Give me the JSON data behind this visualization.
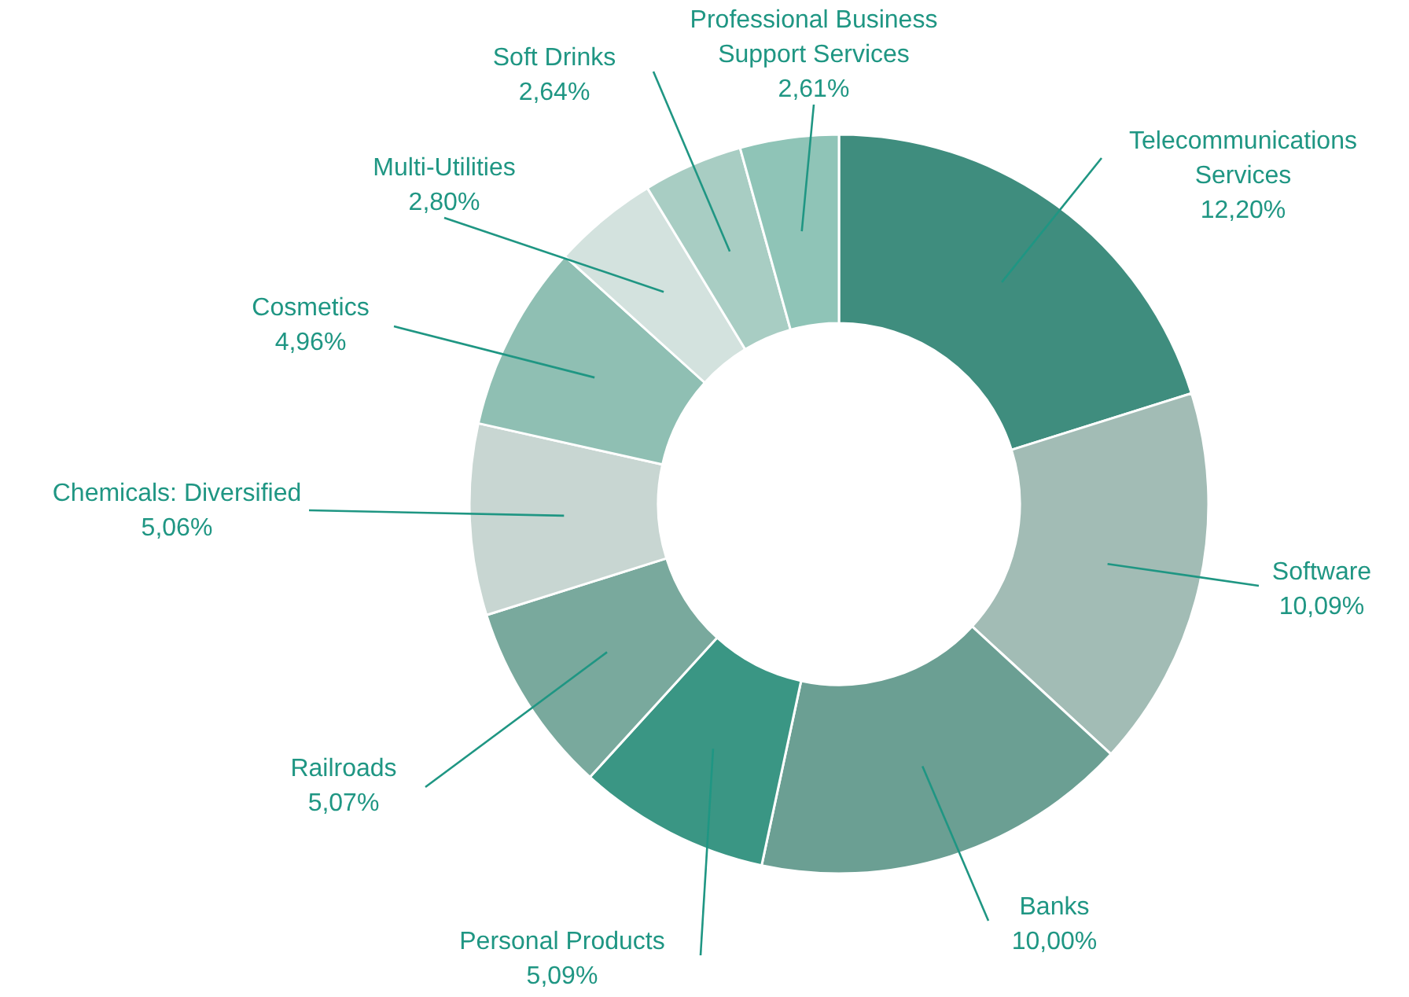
{
  "chart_data": {
    "type": "donut",
    "categories": [
      "Telecommunications Services",
      "Software",
      "Banks",
      "Personal Products",
      "Railroads",
      "Chemicals: Diversified",
      "Cosmetics",
      "Multi-Utilities",
      "Soft Drinks",
      "Professional Business Support Services"
    ],
    "values": [
      12.2,
      10.09,
      10.0,
      5.09,
      5.07,
      5.06,
      4.96,
      2.8,
      2.64,
      2.61
    ],
    "value_labels": [
      "12,20%",
      "10,09%",
      "10,00%",
      "5,09%",
      "5,07%",
      "5,06%",
      "4,96%",
      "2,80%",
      "2,64%",
      "2,61%"
    ],
    "colors": [
      "#3f8d7e",
      "#a2bcb5",
      "#6b9f93",
      "#3a9684",
      "#79a99d",
      "#c8d6d2",
      "#8fbfb3",
      "#d3e2de",
      "#a8cdc3",
      "#8fc4b7"
    ]
  }
}
